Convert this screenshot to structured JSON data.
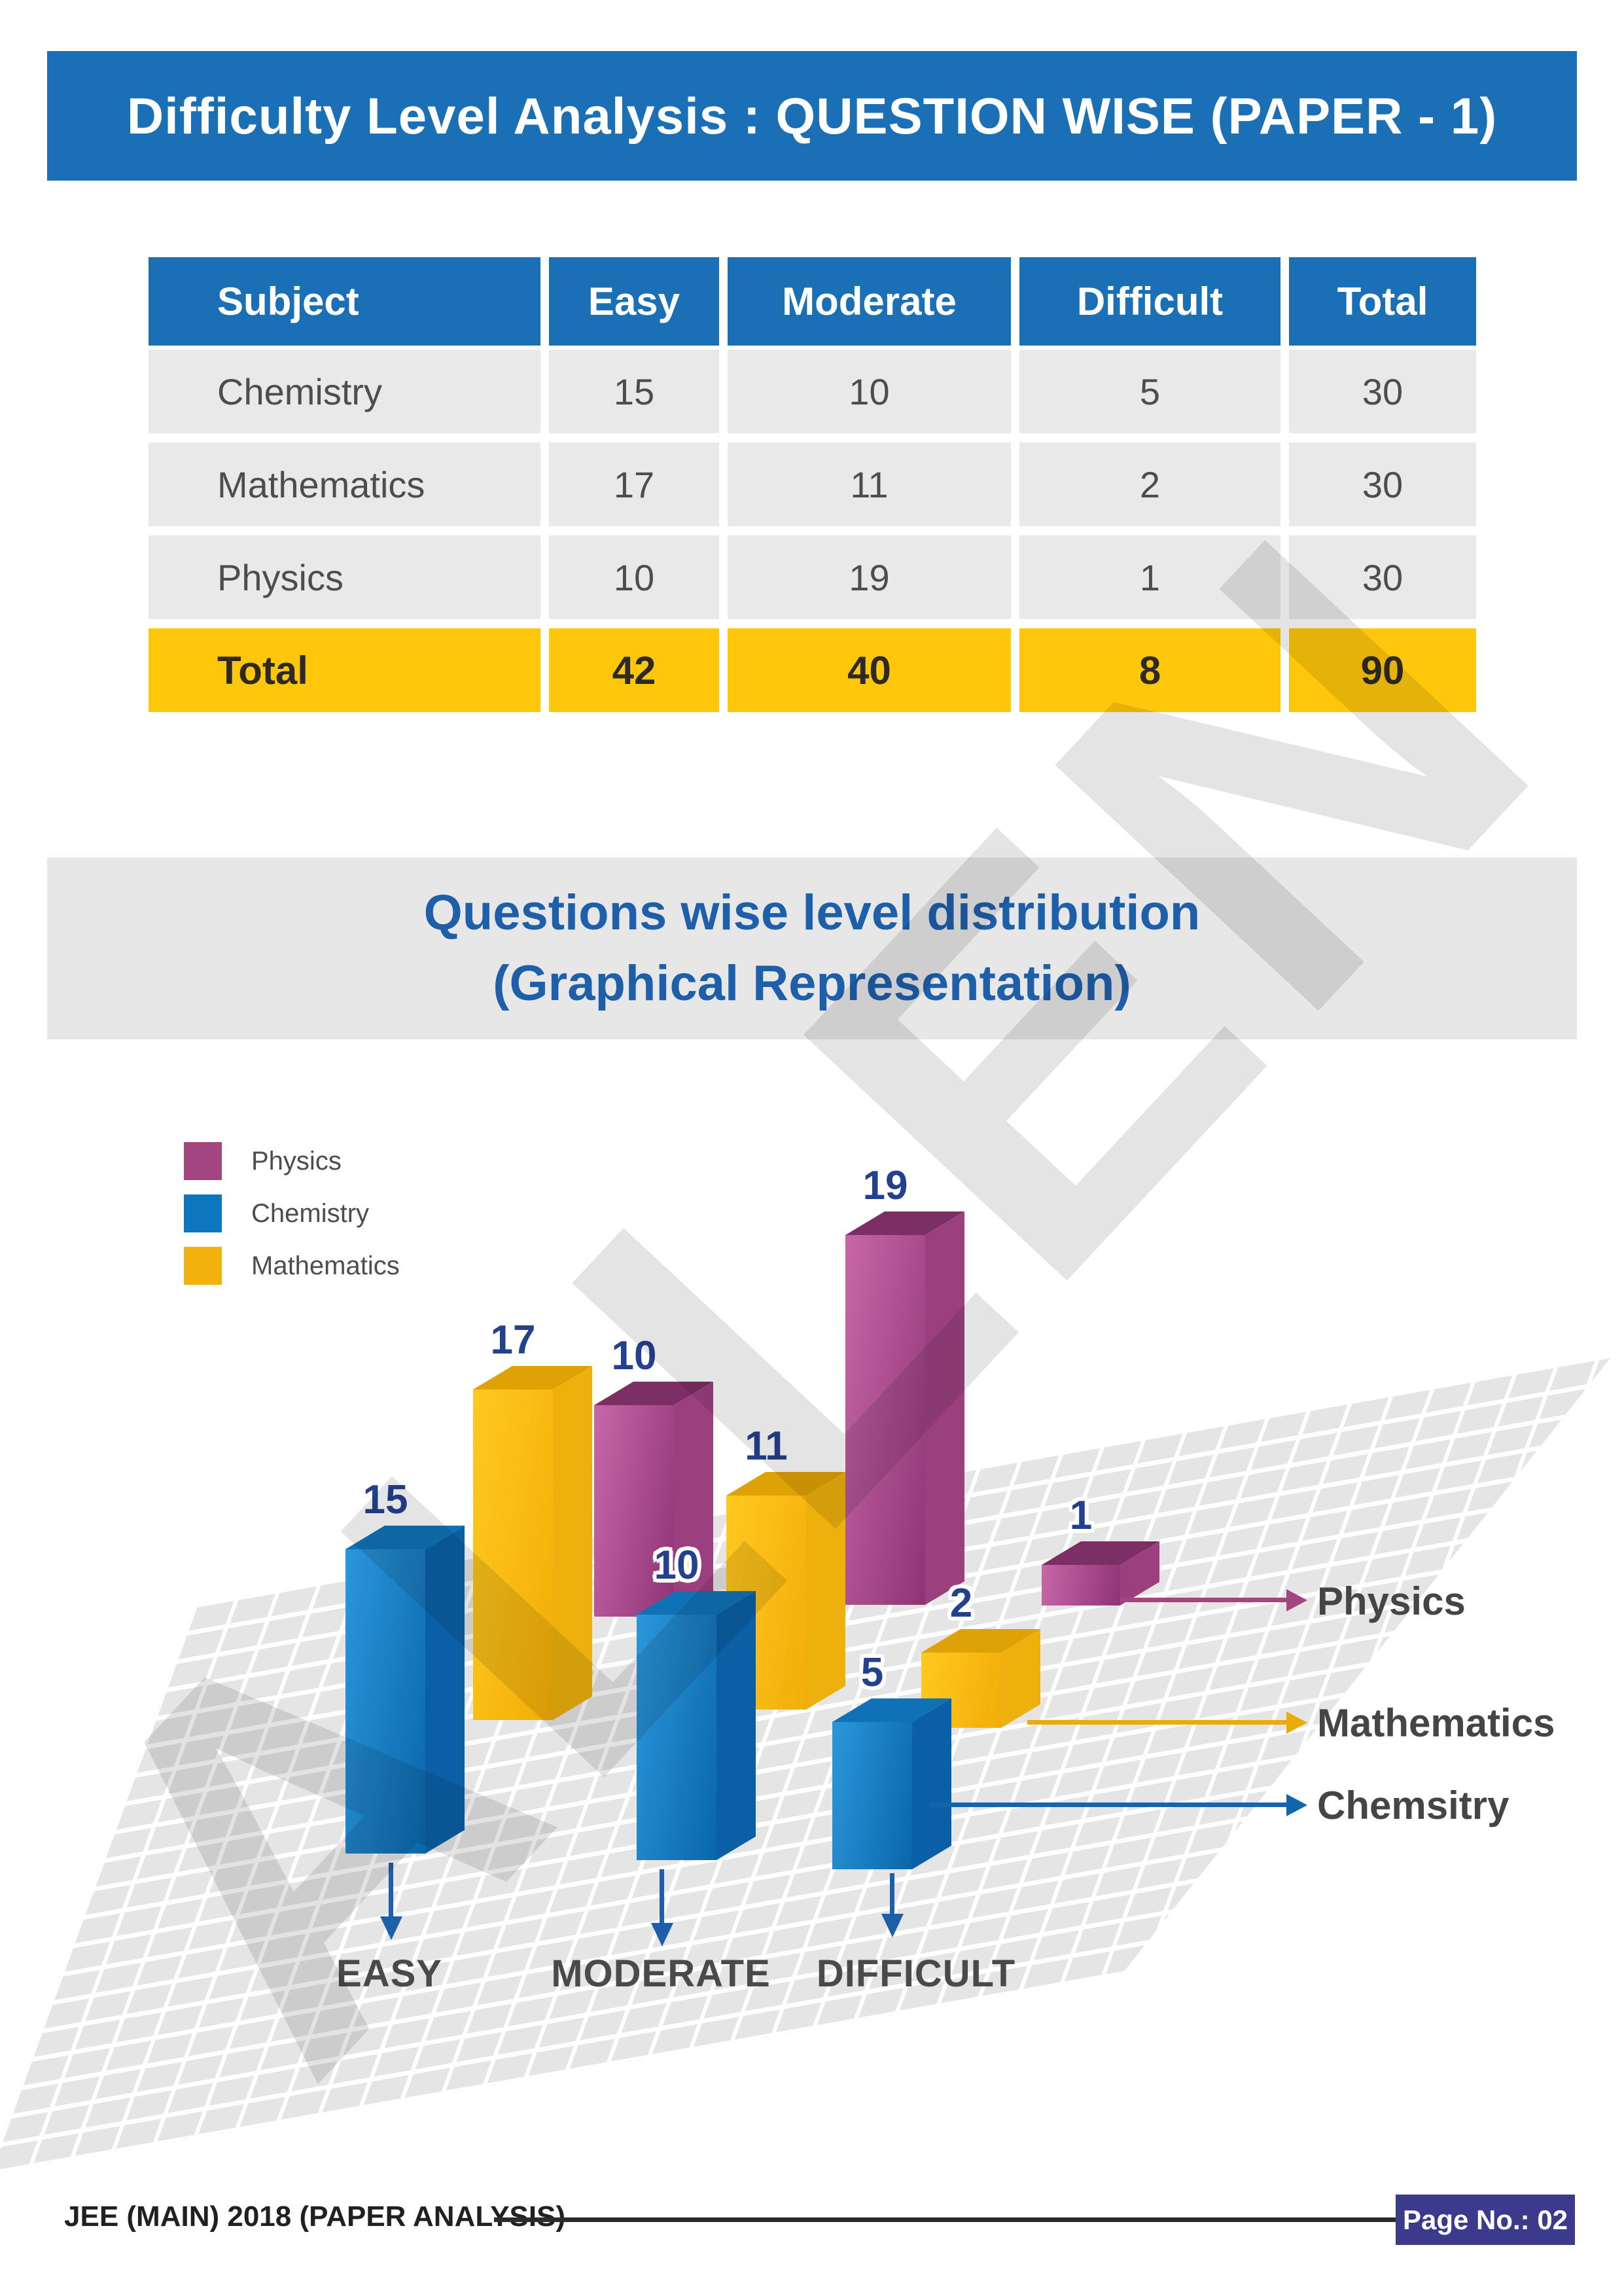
{
  "header": {
    "title": "Difficulty Level Analysis : QUESTION WISE  (PAPER - 1)"
  },
  "table": {
    "columns": [
      "Subject",
      "Easy",
      "Moderate",
      "Difficult",
      "Total"
    ],
    "rows": [
      [
        "Chemistry",
        "15",
        "10",
        "5",
        "30"
      ],
      [
        "Mathematics",
        "17",
        "11",
        "2",
        "30"
      ],
      [
        "Physics",
        "10",
        "19",
        "1",
        "30"
      ]
    ],
    "total": [
      "Total",
      "42",
      "40",
      "8",
      "90"
    ]
  },
  "section": {
    "line1": "Questions wise level distribution",
    "line2": "(Graphical Representation)"
  },
  "chart_data": {
    "type": "bar",
    "style": "3d-perspective",
    "categories": [
      "EASY",
      "MODERATE",
      "DIFFICULT"
    ],
    "series": [
      {
        "name": "Physics",
        "color": "#A3457F",
        "values": [
          10,
          19,
          1
        ]
      },
      {
        "name": "Chemistry",
        "color": "#0E76BC",
        "values": [
          15,
          10,
          5
        ]
      },
      {
        "name": "Mathematics",
        "color": "#F2B10D",
        "values": [
          17,
          11,
          2
        ]
      }
    ],
    "legend": [
      "Physics",
      "Chemistry",
      "Mathematics"
    ],
    "legend_position": "top-left",
    "row_axis_labels": [
      "Physics",
      "Mathematics",
      "Chemsitry"
    ],
    "value_labels_shown": true,
    "floor_grid": true,
    "ylim": [
      0,
      19
    ]
  },
  "footer": {
    "left_text": "JEE (MAIN) 2018 (PAPER ANALYSIS)",
    "page_label": "Page No.: 02"
  },
  "watermark": {
    "text": "ALLEN"
  },
  "colors": {
    "banner_blue": "#1B6FB5",
    "table_row_bg": "#E9E9E9",
    "total_row_bg": "#FFC70A",
    "section_bg": "#E7E7E7",
    "section_text": "#1E5FA9",
    "value_label": "#24418E",
    "physics": "#A3457F",
    "chemistry": "#0E76BC",
    "mathematics": "#F2B10D",
    "arrow_blue": "#1D5FA9",
    "page_box": "#3B3A8C"
  }
}
